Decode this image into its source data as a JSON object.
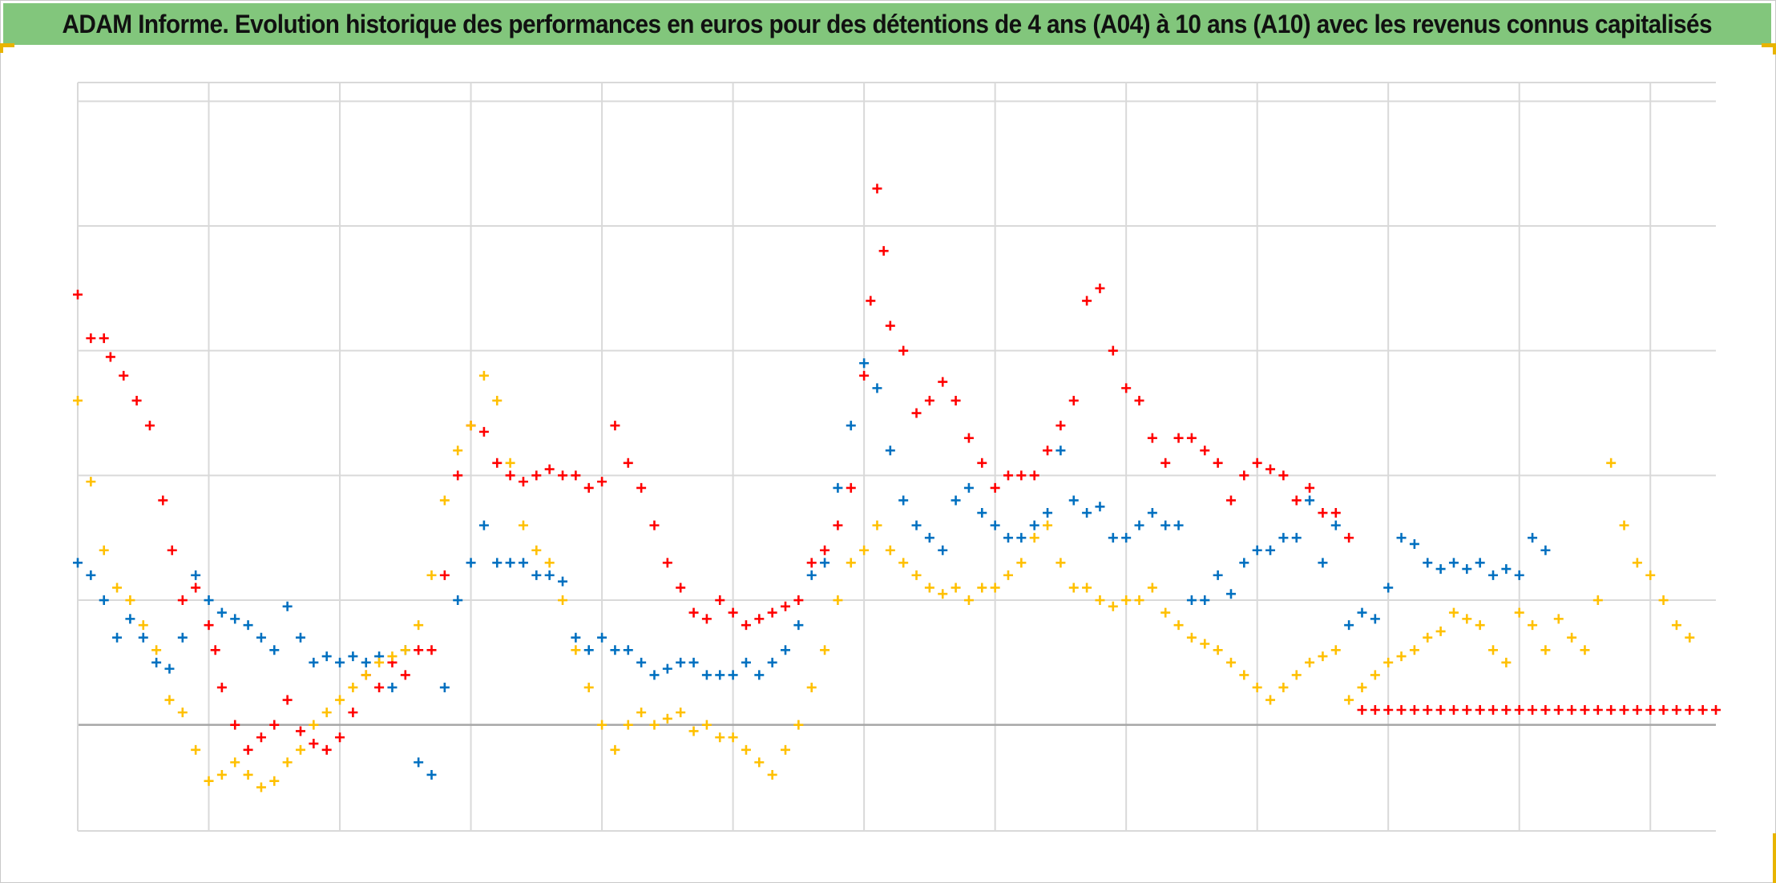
{
  "title": "ADAM Informe. Evolution historique des performances en euros pour des détentions de 4 ans (A04) à 10 ans (A10) avec les revenus connus capitalisés",
  "colors": {
    "title_background": "#82c67c",
    "accent_corner": "#e8b400",
    "grid": "#d9d9d9",
    "baseline": "#a6a6a6"
  },
  "chart_data": {
    "type": "scatter",
    "marker": "plus",
    "title": "ADAM Informe. Evolution historique des performances en euros pour des détentions de 4 ans (A04) à 10 ans (A10) avec les revenus connus capitalisés",
    "xlabel": "",
    "ylabel": "",
    "tick_labels_shown": false,
    "legend": "none",
    "grid": true,
    "xlim": [
      0,
      12.5
    ],
    "ylim": [
      -0.85,
      5.15
    ],
    "series": [
      {
        "color": "#ff0000",
        "x": [
          0.0,
          0.1,
          0.2,
          0.25,
          0.35,
          0.45,
          0.55,
          0.65,
          0.72,
          0.8,
          0.9,
          1.0,
          1.05,
          1.1,
          1.2,
          1.3,
          1.4,
          1.5,
          1.6,
          1.7,
          1.8,
          1.9,
          2.0,
          2.1,
          2.2,
          2.3,
          2.4,
          2.5,
          2.6,
          2.7,
          2.8,
          2.9,
          3.0,
          3.1,
          3.2,
          3.3,
          3.4,
          3.5,
          3.6,
          3.7,
          3.8,
          3.9,
          4.0,
          4.1,
          4.2,
          4.3,
          4.4,
          4.5,
          4.6,
          4.7,
          4.8,
          4.9,
          5.0,
          5.1,
          5.2,
          5.3,
          5.4,
          5.5,
          5.6,
          5.7,
          5.8,
          5.9,
          6.0,
          6.05,
          6.1,
          6.15,
          6.2,
          6.3,
          6.4,
          6.5,
          6.6,
          6.7,
          6.8,
          6.9,
          7.0,
          7.1,
          7.2,
          7.3,
          7.4,
          7.5,
          7.6,
          7.7,
          7.8,
          7.9,
          8.0,
          8.1,
          8.2,
          8.3,
          8.4,
          8.5,
          8.6,
          8.7,
          8.8,
          8.9,
          9.0,
          9.1,
          9.2,
          9.3,
          9.4,
          9.5,
          9.6,
          9.7,
          9.8,
          9.9,
          10.0,
          10.1,
          10.2,
          10.3,
          10.4,
          10.5,
          10.6,
          10.7,
          10.8,
          10.9,
          11.0,
          11.1,
          11.2,
          11.3,
          11.4,
          11.5,
          11.6,
          11.7,
          11.8,
          11.9,
          12.0,
          12.1,
          12.2,
          12.3,
          12.4,
          12.5
        ],
        "y": [
          3.45,
          3.1,
          3.1,
          2.95,
          2.8,
          2.6,
          2.4,
          1.8,
          1.4,
          1.0,
          1.1,
          0.8,
          0.6,
          0.3,
          0.0,
          -0.2,
          -0.1,
          0.0,
          0.2,
          -0.05,
          -0.15,
          -0.2,
          -0.1,
          0.1,
          0.4,
          0.3,
          0.5,
          0.4,
          0.6,
          0.6,
          1.2,
          2.0,
          2.4,
          2.35,
          2.1,
          2.0,
          1.95,
          2.0,
          2.05,
          2.0,
          2.0,
          1.9,
          1.95,
          2.4,
          2.1,
          1.9,
          1.6,
          1.3,
          1.1,
          0.9,
          0.85,
          1.0,
          0.9,
          0.8,
          0.85,
          0.9,
          0.95,
          1.0,
          1.3,
          1.4,
          1.6,
          1.9,
          2.8,
          3.4,
          4.3,
          3.8,
          3.2,
          3.0,
          2.5,
          2.6,
          2.75,
          2.6,
          2.3,
          2.1,
          1.9,
          2.0,
          2.0,
          2.0,
          2.2,
          2.4,
          2.6,
          3.4,
          3.5,
          3.0,
          2.7,
          2.6,
          2.3,
          2.1,
          2.3,
          2.3,
          2.2,
          2.1,
          1.8,
          2.0,
          2.1,
          2.05,
          2.0,
          1.8,
          1.9,
          1.7,
          1.7,
          1.5,
          0.12,
          0.12,
          0.12,
          0.12,
          0.12,
          0.12,
          0.12,
          0.12,
          0.12,
          0.12,
          0.12,
          0.12,
          0.12,
          0.12,
          0.12,
          0.12,
          0.12,
          0.12,
          0.12,
          0.12,
          0.12,
          0.12,
          0.12,
          0.12,
          0.12,
          0.12,
          0.12,
          0.12
        ]
      },
      {
        "color": "#0070c0",
        "x": [
          0.0,
          0.1,
          0.2,
          0.3,
          0.4,
          0.5,
          0.6,
          0.7,
          0.8,
          0.9,
          1.0,
          1.1,
          1.2,
          1.3,
          1.4,
          1.5,
          1.6,
          1.7,
          1.8,
          1.9,
          2.0,
          2.1,
          2.2,
          2.3,
          2.4,
          2.5,
          2.6,
          2.7,
          2.8,
          2.9,
          3.0,
          3.1,
          3.2,
          3.3,
          3.4,
          3.5,
          3.6,
          3.7,
          3.8,
          3.9,
          4.0,
          4.1,
          4.2,
          4.3,
          4.4,
          4.5,
          4.6,
          4.7,
          4.8,
          4.9,
          5.0,
          5.1,
          5.2,
          5.3,
          5.4,
          5.5,
          5.6,
          5.7,
          5.8,
          5.9,
          6.0,
          6.1,
          6.2,
          6.3,
          6.4,
          6.5,
          6.6,
          6.7,
          6.8,
          6.9,
          7.0,
          7.1,
          7.2,
          7.3,
          7.4,
          7.5,
          7.6,
          7.7,
          7.8,
          7.9,
          8.0,
          8.1,
          8.2,
          8.3,
          8.4,
          8.5,
          8.6,
          8.7,
          8.8,
          8.9,
          9.0,
          9.1,
          9.2,
          9.3,
          9.4,
          9.5,
          9.6,
          9.7,
          9.8,
          9.9,
          10.0,
          10.1,
          10.2,
          10.3,
          10.4,
          10.5,
          10.6,
          10.7,
          10.8,
          10.9,
          11.0,
          11.1,
          11.2
        ],
        "y": [
          1.3,
          1.2,
          1.0,
          0.7,
          0.85,
          0.7,
          0.5,
          0.45,
          0.7,
          1.2,
          1.0,
          0.9,
          0.85,
          0.8,
          0.7,
          0.6,
          0.95,
          0.7,
          0.5,
          0.55,
          0.5,
          0.55,
          0.5,
          0.55,
          0.3,
          0.6,
          -0.3,
          -0.4,
          0.3,
          1.0,
          1.3,
          1.6,
          1.3,
          1.3,
          1.3,
          1.2,
          1.2,
          1.15,
          0.7,
          0.6,
          0.7,
          0.6,
          0.6,
          0.5,
          0.4,
          0.45,
          0.5,
          0.5,
          0.4,
          0.4,
          0.4,
          0.5,
          0.4,
          0.5,
          0.6,
          0.8,
          1.2,
          1.3,
          1.9,
          2.4,
          2.9,
          2.7,
          2.2,
          1.8,
          1.6,
          1.5,
          1.4,
          1.8,
          1.9,
          1.7,
          1.6,
          1.5,
          1.5,
          1.6,
          1.7,
          2.2,
          1.8,
          1.7,
          1.75,
          1.5,
          1.5,
          1.6,
          1.7,
          1.6,
          1.6,
          1.0,
          1.0,
          1.2,
          1.05,
          1.3,
          1.4,
          1.4,
          1.5,
          1.5,
          1.8,
          1.3,
          1.6,
          0.8,
          0.9,
          0.85,
          1.1,
          1.5,
          1.45,
          1.3,
          1.25,
          1.3,
          1.25,
          1.3,
          1.2,
          1.25,
          1.2,
          1.5,
          1.4
        ]
      },
      {
        "color": "#ffc000",
        "x": [
          0.0,
          0.1,
          0.2,
          0.3,
          0.4,
          0.5,
          0.6,
          0.7,
          0.8,
          0.9,
          1.0,
          1.1,
          1.2,
          1.3,
          1.4,
          1.5,
          1.6,
          1.7,
          1.8,
          1.9,
          2.0,
          2.1,
          2.2,
          2.3,
          2.4,
          2.5,
          2.6,
          2.7,
          2.8,
          2.9,
          3.0,
          3.1,
          3.2,
          3.3,
          3.4,
          3.5,
          3.6,
          3.7,
          3.8,
          3.9,
          4.0,
          4.1,
          4.2,
          4.3,
          4.4,
          4.5,
          4.6,
          4.7,
          4.8,
          4.9,
          5.0,
          5.1,
          5.2,
          5.3,
          5.4,
          5.5,
          5.6,
          5.7,
          5.8,
          5.9,
          6.0,
          6.1,
          6.2,
          6.3,
          6.4,
          6.5,
          6.6,
          6.7,
          6.8,
          6.9,
          7.0,
          7.1,
          7.2,
          7.3,
          7.4,
          7.5,
          7.6,
          7.7,
          7.8,
          7.9,
          8.0,
          8.1,
          8.2,
          8.3,
          8.4,
          8.5,
          8.6,
          8.7,
          8.8,
          8.9,
          9.0,
          9.1,
          9.2,
          9.3,
          9.4,
          9.5,
          9.6,
          9.7,
          9.8,
          9.9,
          10.0,
          10.1,
          10.2,
          10.3,
          10.4,
          10.5,
          10.6,
          10.7,
          10.8,
          10.9,
          11.0,
          11.1,
          11.2,
          11.3,
          11.4,
          11.5,
          11.6,
          11.7,
          11.8,
          11.9,
          12.0,
          12.1,
          12.2,
          12.3
        ],
        "y": [
          2.6,
          1.95,
          1.4,
          1.1,
          1.0,
          0.8,
          0.6,
          0.2,
          0.1,
          -0.2,
          -0.45,
          -0.4,
          -0.3,
          -0.4,
          -0.5,
          -0.45,
          -0.3,
          -0.2,
          0.0,
          0.1,
          0.2,
          0.3,
          0.4,
          0.5,
          0.55,
          0.6,
          0.8,
          1.2,
          1.8,
          2.2,
          2.4,
          2.8,
          2.6,
          2.1,
          1.6,
          1.4,
          1.3,
          1.0,
          0.6,
          0.3,
          0.0,
          -0.2,
          0.0,
          0.1,
          0.0,
          0.05,
          0.1,
          -0.05,
          0.0,
          -0.1,
          -0.1,
          -0.2,
          -0.3,
          -0.4,
          -0.2,
          0.0,
          0.3,
          0.6,
          1.0,
          1.3,
          1.4,
          1.6,
          1.4,
          1.3,
          1.2,
          1.1,
          1.05,
          1.1,
          1.0,
          1.1,
          1.1,
          1.2,
          1.3,
          1.5,
          1.6,
          1.3,
          1.1,
          1.1,
          1.0,
          0.95,
          1.0,
          1.0,
          1.1,
          0.9,
          0.8,
          0.7,
          0.65,
          0.6,
          0.5,
          0.4,
          0.3,
          0.2,
          0.3,
          0.4,
          0.5,
          0.55,
          0.6,
          0.2,
          0.3,
          0.4,
          0.5,
          0.55,
          0.6,
          0.7,
          0.75,
          0.9,
          0.85,
          0.8,
          0.6,
          0.5,
          0.9,
          0.8,
          0.6,
          0.85,
          0.7,
          0.6,
          1.0,
          2.1,
          1.6,
          1.3,
          1.2,
          1.0,
          0.8,
          0.7
        ]
      }
    ]
  }
}
